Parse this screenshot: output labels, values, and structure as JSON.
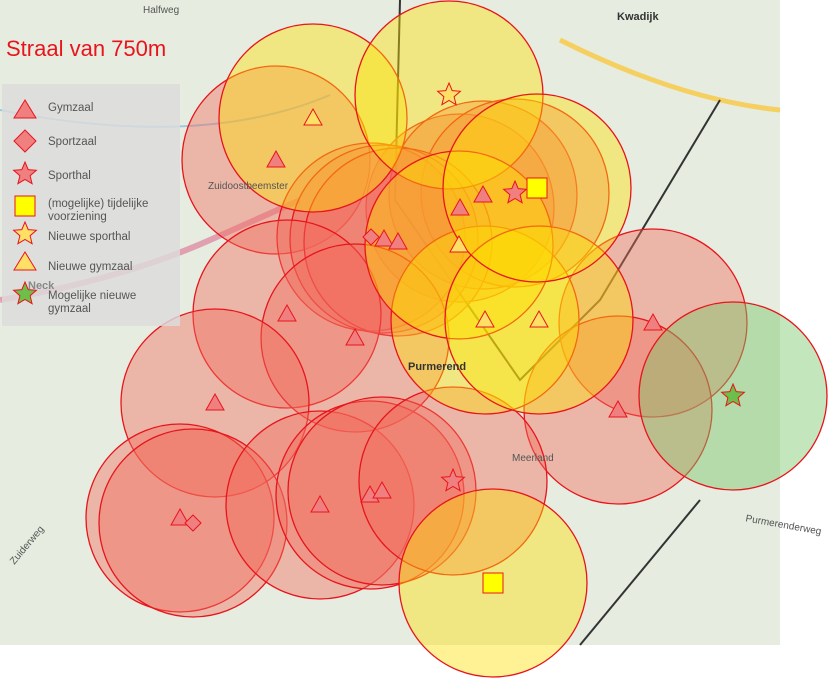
{
  "title": "Straal van 750m",
  "legend": [
    {
      "label": "Gymzaal",
      "symbol": "triangle",
      "color": "#f08080"
    },
    {
      "label": "Sportzaal",
      "symbol": "diamond",
      "color": "#f08080"
    },
    {
      "label": "Sporthal",
      "symbol": "star",
      "color": "#f08080"
    },
    {
      "label": "(mogelijke) tijdelijke voorziening",
      "symbol": "square",
      "color": "#ffff00"
    },
    {
      "label": "Nieuwe sporthal",
      "symbol": "star",
      "color": "#ffe066"
    },
    {
      "label": "Nieuwe gymzaal",
      "symbol": "triangle",
      "color": "#ffe066"
    },
    {
      "label": "Mogelijke nieuwe gymzaal",
      "symbol": "star",
      "color": "#6cc04a"
    }
  ],
  "places": {
    "halfweg": "Halfweg",
    "kwadijk": "Kwadijk",
    "zuidoostbeemster": "Zuidoostbeemster",
    "purmerend": "Purmerend",
    "neck": "Neck",
    "zuiderweg": "Zuiderweg",
    "meerland": "Meerland",
    "purmerenderweg": "Purmerenderweg"
  },
  "colors": {
    "existing_fill": "#f26b5b",
    "new_fill": "#ffe000",
    "possible_fill": "#7cc86a",
    "circle_stroke": "#e8141c"
  }
}
